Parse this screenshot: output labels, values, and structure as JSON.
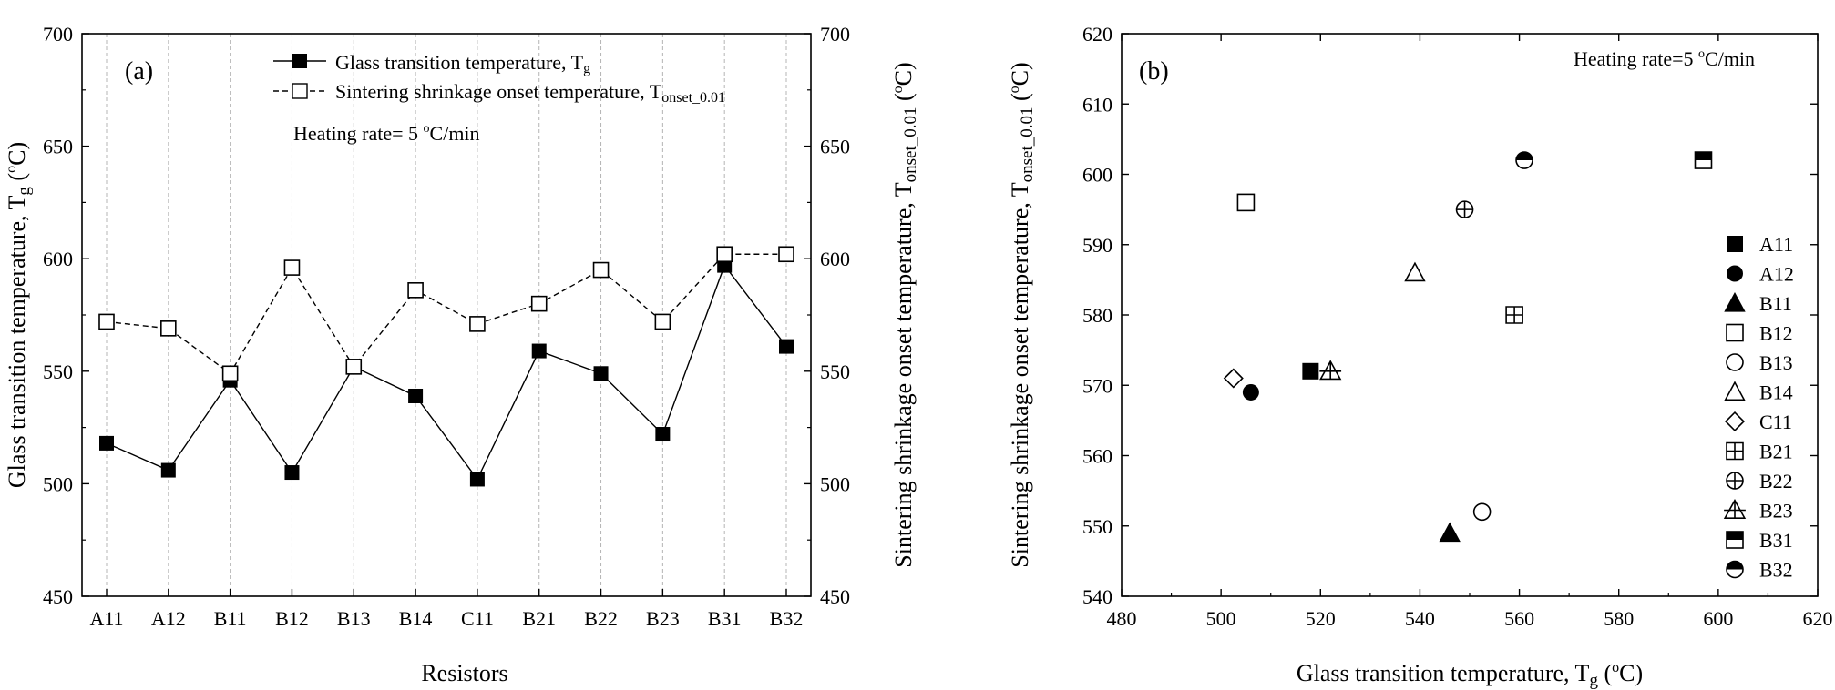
{
  "colors": {
    "ink": "#000000",
    "grid": "#b4b4b4",
    "background": "#ffffff"
  },
  "chart_data": [
    {
      "panel_label": "(a)",
      "type": "line",
      "xlabel": "Resistors",
      "ylabel": "Glass transition temperature, T",
      "ylabel_sub": "g",
      "ylabel_unit": " (",
      "ylabel_deg": "o",
      "ylabel_tail": "C)",
      "y2label": "Sintering shrinkage onset temperature, T",
      "y2label_sub": "onset_0.01",
      "y2label_unit": " (",
      "y2label_deg": "o",
      "y2label_tail": "C)",
      "ylim": [
        450,
        700
      ],
      "yticks": [
        450,
        500,
        550,
        600,
        650,
        700
      ],
      "y2lim": [
        450,
        700
      ],
      "y2ticks": [
        450,
        500,
        550,
        600,
        650,
        700
      ],
      "categories": [
        "A11",
        "A12",
        "B11",
        "B12",
        "B13",
        "B14",
        "C11",
        "B21",
        "B22",
        "B23",
        "B31",
        "B32"
      ],
      "series": [
        {
          "name": "Glass transition temperature, T",
          "name_sub": "g",
          "marker": "filled-square",
          "line": "solid",
          "values": [
            518,
            506,
            546,
            505,
            552,
            539,
            502,
            559,
            549,
            522,
            597,
            561
          ]
        },
        {
          "name": "Sintering shrinkage onset temperature, T",
          "name_sub": "onset_0.01",
          "marker": "open-square",
          "line": "dashed",
          "values": [
            572,
            569,
            549,
            596,
            552,
            586,
            571,
            580,
            595,
            572,
            602,
            602
          ]
        }
      ],
      "annotation": {
        "text": "Heating rate= 5 ",
        "deg": "o",
        "tail": "C/min"
      },
      "vertical_grid": true
    },
    {
      "panel_label": "(b)",
      "type": "scatter",
      "xlabel": "Glass transition temperature, T",
      "xlabel_sub": "g",
      "xlabel_unit": " (",
      "xlabel_deg": "o",
      "xlabel_tail": "C)",
      "ylabel": "Sintering shrinkage onset temperature, T",
      "ylabel_sub": "onset_0.01",
      "ylabel_unit": " (",
      "ylabel_deg": "o",
      "ylabel_tail": "C)",
      "xlim": [
        480,
        620
      ],
      "xticks": [
        480,
        500,
        520,
        540,
        560,
        580,
        600,
        620
      ],
      "ylim": [
        540,
        620
      ],
      "yticks": [
        540,
        550,
        560,
        570,
        580,
        590,
        600,
        610,
        620
      ],
      "annotation": {
        "text": "Heating rate=5 ",
        "deg": "o",
        "tail": "C/min"
      },
      "points": [
        {
          "name": "A11",
          "marker": "filled-square",
          "x": 518,
          "y": 572
        },
        {
          "name": "A12",
          "marker": "filled-circle",
          "x": 506,
          "y": 569
        },
        {
          "name": "B11",
          "marker": "filled-triangle",
          "x": 546,
          "y": 549
        },
        {
          "name": "B12",
          "marker": "open-square",
          "x": 505,
          "y": 596
        },
        {
          "name": "B13",
          "marker": "open-circle",
          "x": 552.5,
          "y": 552
        },
        {
          "name": "B14",
          "marker": "open-triangle",
          "x": 539,
          "y": 586
        },
        {
          "name": "C11",
          "marker": "open-diamond",
          "x": 502.5,
          "y": 571
        },
        {
          "name": "B21",
          "marker": "crossed-square",
          "x": 559,
          "y": 580
        },
        {
          "name": "B22",
          "marker": "crossed-circle",
          "x": 549,
          "y": 595
        },
        {
          "name": "B23",
          "marker": "crossed-triangle",
          "x": 522,
          "y": 572
        },
        {
          "name": "B31",
          "marker": "half-square",
          "x": 597,
          "y": 602
        },
        {
          "name": "B32",
          "marker": "half-circle",
          "x": 561,
          "y": 602
        }
      ],
      "legend_position": "right"
    }
  ]
}
